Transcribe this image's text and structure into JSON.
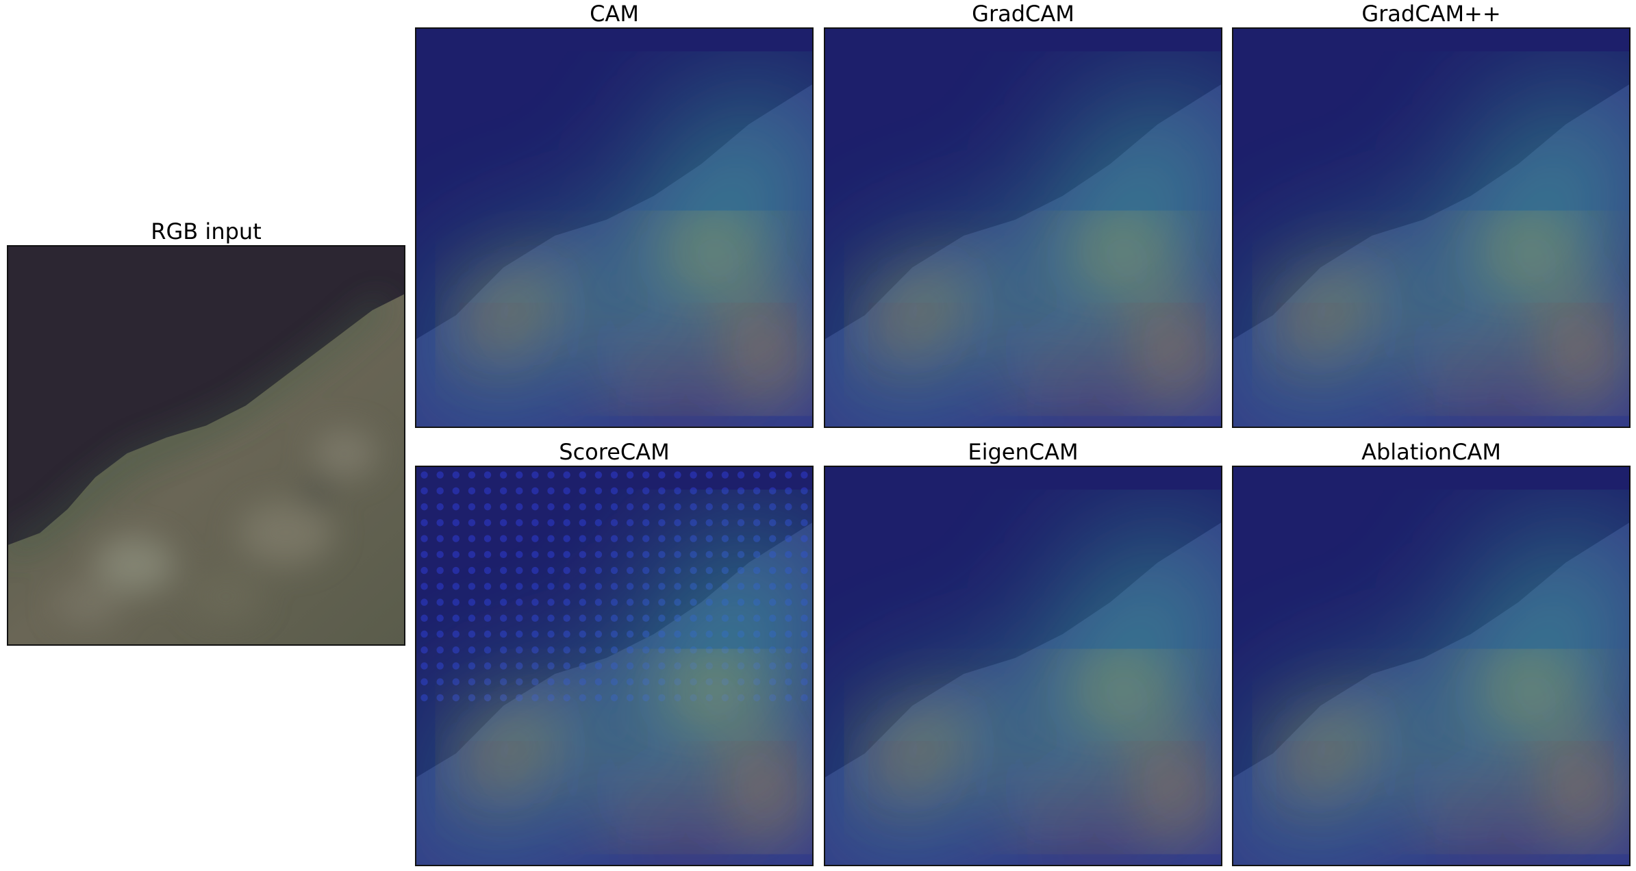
{
  "figure": {
    "input_panel": {
      "title": "RGB input"
    },
    "cam_panels": [
      {
        "title": "CAM"
      },
      {
        "title": "GradCAM"
      },
      {
        "title": "GradCAM++"
      },
      {
        "title": "ScoreCAM"
      },
      {
        "title": "EigenCAM"
      },
      {
        "title": "AblationCAM"
      }
    ]
  },
  "colors": {
    "water": "#2b2533",
    "land": "#5b5a48",
    "heat_low": "#1d1f6b",
    "heat_mid": "#3fbf9a",
    "heat_high": "#f2c22e",
    "heat_peak": "#c8201d"
  }
}
